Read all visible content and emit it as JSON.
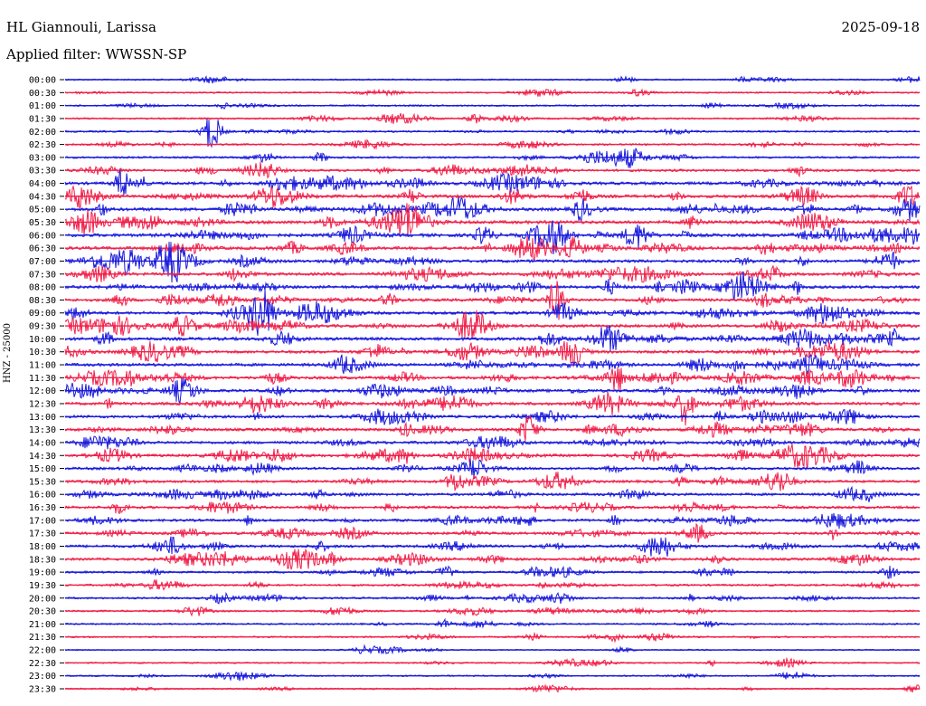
{
  "header": {
    "station": "HL Giannouli, Larissa",
    "date": "2025-09-18",
    "filter": "Applied filter: WWSSN-SP"
  },
  "colors": {
    "blue": "#1a1adc",
    "red": "#f0204a"
  },
  "chart_data": {
    "type": "line",
    "title": "HL Giannouli, Larissa",
    "subtitle": "Applied filter: WWSSN-SP",
    "ylabel": "HNZ - 25000",
    "xlabel": "",
    "date": "2025-09-18",
    "grid": false,
    "legend": "none",
    "row_labels": [
      "00:00",
      "00:30",
      "01:00",
      "01:30",
      "02:00",
      "02:30",
      "03:00",
      "03:30",
      "04:00",
      "04:30",
      "05:00",
      "05:30",
      "06:00",
      "06:30",
      "07:00",
      "07:30",
      "08:00",
      "08:30",
      "09:00",
      "09:30",
      "10:00",
      "10:30",
      "11:00",
      "11:30",
      "12:00",
      "12:30",
      "13:00",
      "13:30",
      "14:00",
      "14:30",
      "15:00",
      "15:30",
      "16:00",
      "16:30",
      "17:00",
      "17:30",
      "18:00",
      "18:30",
      "19:00",
      "19:30",
      "20:00",
      "20:30",
      "21:00",
      "21:30",
      "22:00",
      "22:30",
      "23:00",
      "23:30"
    ],
    "row_colors": [
      "blue",
      "red"
    ],
    "activity": [
      0.1,
      0.12,
      0.15,
      0.18,
      0.2,
      0.2,
      0.25,
      0.4,
      0.55,
      0.6,
      0.65,
      0.65,
      0.65,
      0.6,
      0.55,
      0.55,
      0.55,
      0.55,
      0.55,
      0.55,
      0.6,
      0.55,
      0.55,
      0.55,
      0.55,
      0.55,
      0.5,
      0.5,
      0.5,
      0.5,
      0.45,
      0.45,
      0.45,
      0.45,
      0.45,
      0.45,
      0.45,
      0.4,
      0.3,
      0.25,
      0.25,
      0.2,
      0.15,
      0.15,
      0.05,
      0.1,
      0.12,
      0.1
    ]
  }
}
